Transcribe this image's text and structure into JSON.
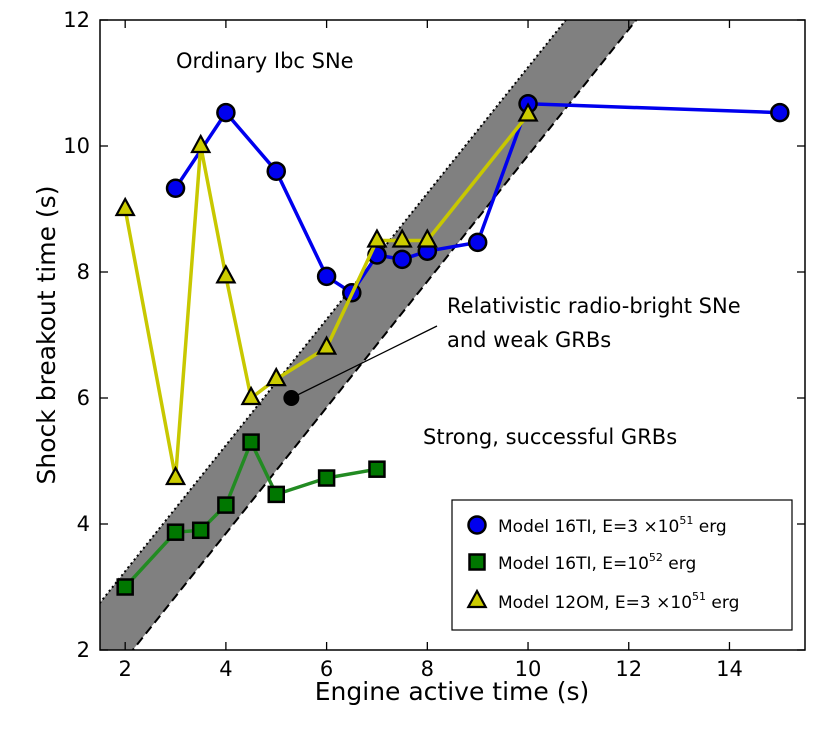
{
  "chart_data": {
    "type": "line",
    "xlabel": "Engine active time (s)",
    "ylabel": "Shock breakout time (s)",
    "xlim": [
      1.5,
      15.5
    ],
    "ylim": [
      2,
      12
    ],
    "xticks": [
      2,
      4,
      6,
      8,
      10,
      12,
      14
    ],
    "yticks": [
      2,
      4,
      6,
      8,
      10,
      12
    ],
    "grid": false,
    "legend_position": "bottom-right",
    "series": [
      {
        "name": "Model 16TI, E=3×10^51 erg",
        "legend_prefix": "Model 16TI, E=3 ×10",
        "legend_exp": "51",
        "legend_suffix": " erg",
        "marker": "circle",
        "line_color": "#0000ee",
        "marker_color": "#0000ee",
        "x": [
          3,
          4,
          5,
          6,
          6.5,
          7,
          7.5,
          8,
          9,
          10,
          15
        ],
        "y": [
          9.33,
          10.53,
          9.6,
          7.93,
          7.67,
          8.27,
          8.2,
          8.33,
          8.47,
          10.67,
          10.53
        ]
      },
      {
        "name": "Model 16TI, E=10^52 erg",
        "legend_prefix": "Model 16TI, E=10",
        "legend_exp": "52",
        "legend_suffix": " erg",
        "marker": "square",
        "line_color": "#228b22",
        "marker_color": "#007700",
        "x": [
          2,
          3,
          3.5,
          4,
          4.5,
          5,
          6,
          7
        ],
        "y": [
          3.0,
          3.87,
          3.9,
          4.3,
          5.3,
          4.47,
          4.73,
          4.87
        ]
      },
      {
        "name": "Model 12OM, E=3×10^51 erg",
        "legend_prefix": "Model 12OM, E=3 ×10",
        "legend_exp": "51",
        "legend_suffix": " erg",
        "marker": "triangle",
        "line_color": "#c8c800",
        "marker_color": "#cccc00",
        "x": [
          2,
          3,
          3.5,
          4,
          4.5,
          5,
          6,
          7,
          7.5,
          8,
          10
        ],
        "y": [
          9.0,
          4.73,
          10.0,
          7.93,
          6.0,
          6.3,
          6.8,
          8.5,
          8.5,
          8.5,
          10.5
        ]
      }
    ],
    "band": {
      "slope": 1,
      "upper_intercept": 1.25,
      "lower_intercept": -0.15,
      "fill_color": "#808080"
    },
    "special_point": {
      "x": 5.3,
      "y": 6.0,
      "color": "#000000"
    },
    "annotations": {
      "ordinary": "Ordinary Ibc SNe",
      "relativistic_line1": "Relativistic radio-bright SNe",
      "relativistic_line2": "and weak GRBs",
      "strong": "Strong, successful GRBs"
    }
  }
}
